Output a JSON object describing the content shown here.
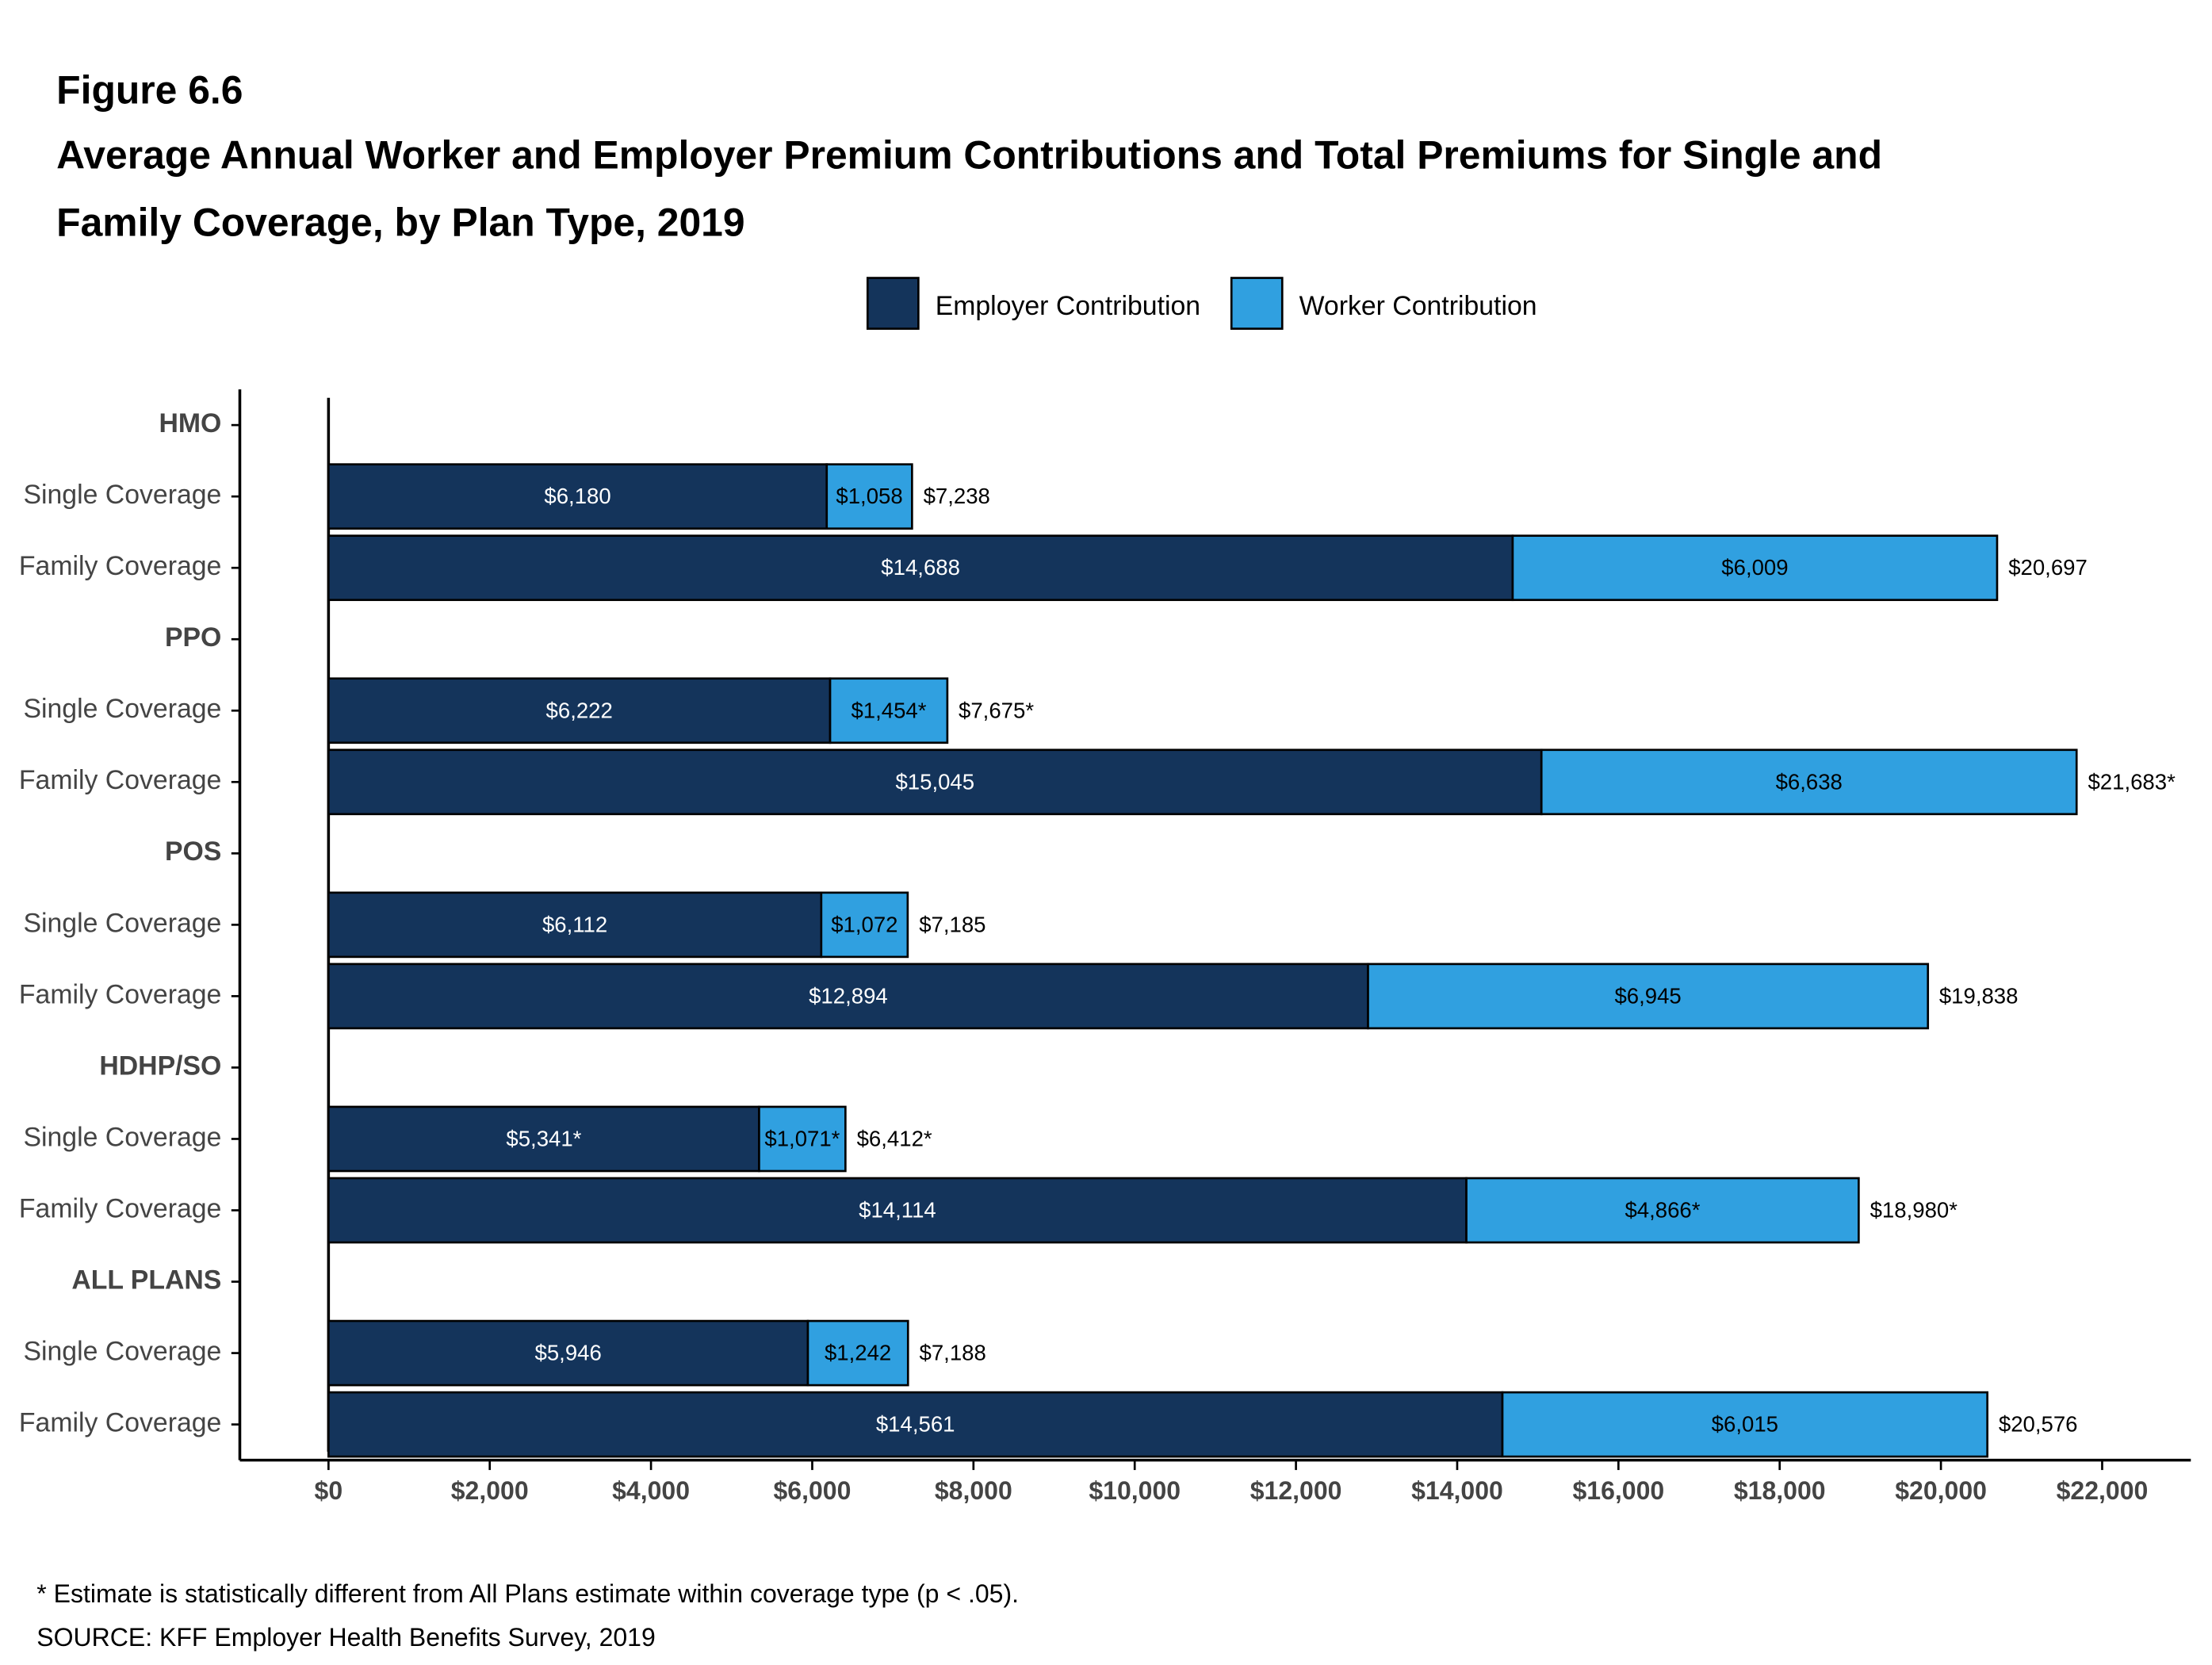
{
  "chart_data": {
    "type": "stacked-barh",
    "figure_label": "Figure 6.6",
    "title": "Average Annual Worker and Employer Premium Contributions and Total Premiums for Single and Family Coverage, by Plan Type, 2019",
    "categories": [
      "HMO",
      "Single Coverage",
      "Family Coverage",
      "PPO",
      "Single Coverage",
      "Family Coverage",
      "POS",
      "Single Coverage",
      "Family Coverage",
      "HDHP/SO",
      "Single Coverage",
      "Family Coverage",
      "ALL PLANS",
      "Single Coverage",
      "Family Coverage"
    ],
    "series": [
      {
        "name": "Employer Contribution",
        "color": "#14345b",
        "values": [
          null,
          6180,
          14688,
          null,
          6222,
          15045,
          null,
          6112,
          12894,
          null,
          5341,
          14114,
          null,
          5946,
          14561
        ],
        "value_labels": [
          null,
          "$6,180",
          "$14,688",
          null,
          "$6,222",
          "$15,045",
          null,
          "$6,112",
          "$12,894",
          null,
          "$5,341*",
          "$14,114",
          null,
          "$5,946",
          "$14,561"
        ]
      },
      {
        "name": "Worker Contribution",
        "color": "#30a0e0",
        "values": [
          null,
          1058,
          6009,
          null,
          1454,
          6638,
          null,
          1072,
          6945,
          null,
          1071,
          4866,
          null,
          1242,
          6015
        ],
        "value_labels": [
          null,
          "$1,058",
          "$6,009",
          null,
          "$1,454*",
          "$6,638",
          null,
          "$1,072",
          "$6,945",
          null,
          "$1,071*",
          "$4,866*",
          null,
          "$1,242",
          "$6,015"
        ]
      }
    ],
    "totals": {
      "values": [
        null,
        7238,
        20697,
        null,
        7675,
        21683,
        null,
        7185,
        19838,
        null,
        6412,
        18980,
        null,
        7188,
        20576
      ],
      "value_labels": [
        null,
        "$7,238",
        "$20,697",
        null,
        "$7,675*",
        "$21,683*",
        null,
        "$7,185",
        "$19,838",
        null,
        "$6,412*",
        "$18,980*",
        null,
        "$7,188",
        "$20,576"
      ]
    },
    "xlim": [
      -1100,
      23100
    ],
    "xticks": [
      {
        "value": 0,
        "label": "$0"
      },
      {
        "value": 2000,
        "label": "$2,000"
      },
      {
        "value": 4000,
        "label": "$4,000"
      },
      {
        "value": 6000,
        "label": "$6,000"
      },
      {
        "value": 8000,
        "label": "$8,000"
      },
      {
        "value": 10000,
        "label": "$10,000"
      },
      {
        "value": 12000,
        "label": "$12,000"
      },
      {
        "value": 14000,
        "label": "$14,000"
      },
      {
        "value": 16000,
        "label": "$16,000"
      },
      {
        "value": 18000,
        "label": "$18,000"
      },
      {
        "value": 20000,
        "label": "$20,000"
      },
      {
        "value": 22000,
        "label": "$22,000"
      }
    ],
    "legend_position": "top",
    "notes": [
      "* Estimate is statistically different from All Plans estimate within coverage type (p < .05).",
      "SOURCE: KFF Employer Health Benefits Survey, 2019"
    ]
  }
}
